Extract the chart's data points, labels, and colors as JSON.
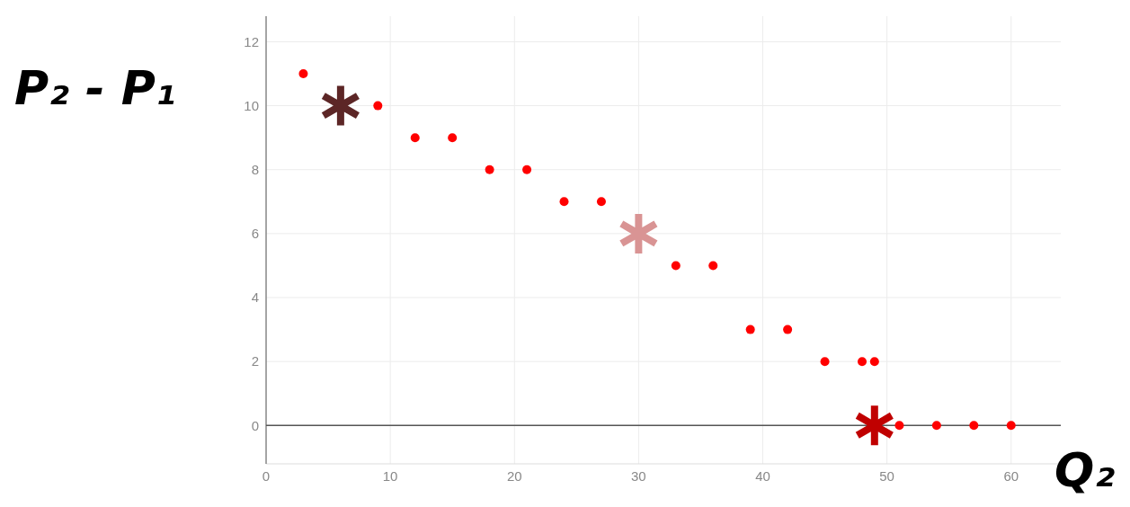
{
  "chart_data": {
    "type": "scatter",
    "xlabel": "Q₂",
    "ylabel": "P₂ - P₁",
    "series": [
      {
        "color": "#ff0000",
        "marker": "circle",
        "x": [
          3,
          9,
          12,
          15,
          18,
          21,
          24,
          27,
          33,
          36,
          39,
          42,
          45,
          48,
          49,
          51,
          54,
          57,
          60
        ],
        "values": [
          11,
          10,
          9,
          9,
          8,
          8,
          7,
          7,
          5,
          5,
          3,
          3,
          2,
          2,
          2,
          0,
          0,
          0,
          0
        ]
      },
      {
        "color": "#5c2626",
        "marker": "star",
        "x": [
          6
        ],
        "values": [
          10
        ]
      },
      {
        "color": "#d99494",
        "marker": "star",
        "x": [
          30
        ],
        "values": [
          6
        ]
      },
      {
        "color": "#c00000",
        "marker": "star",
        "x": [
          49
        ],
        "values": [
          0
        ]
      }
    ],
    "xlim": [
      0,
      64
    ],
    "xticks": [
      0,
      10,
      20,
      30,
      40,
      50,
      60
    ],
    "ylim": [
      -1.2,
      12.8
    ],
    "yticks": [
      0,
      2,
      4,
      6,
      8,
      10,
      12
    ],
    "grid": true,
    "legend": false
  }
}
